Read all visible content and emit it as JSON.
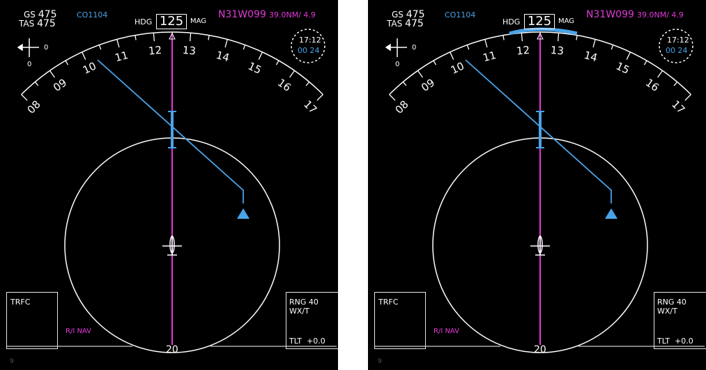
{
  "panels": [
    {
      "id": "left",
      "gs_label": "GS",
      "gs_value": "475",
      "tas_label": "TAS",
      "tas_value": "475",
      "flight_id": "CO1104",
      "hdg_label": "HDG",
      "hdg_value": "125",
      "mag_label": "MAG",
      "waypoint": "N31W099",
      "distance": "39.0NM/ 4.9",
      "wind_speed": "0",
      "wind_dir": "0",
      "clock_time": "17:12",
      "clock_eta": "00 24",
      "compass_ticks": [
        "08",
        "09",
        "10",
        "11",
        "12",
        "13",
        "14",
        "15",
        "16",
        "17"
      ],
      "range_ring_label": "20",
      "left_box_title": "TRFC",
      "nav_mode": "R/I NAV",
      "range_label": "RNG 40",
      "wx_label": "WX/T",
      "tilt_label": "TLT",
      "tilt_value": "+0.0",
      "page_num": "9",
      "heading_bug": false
    },
    {
      "id": "right",
      "gs_label": "GS",
      "gs_value": "475",
      "tas_label": "TAS",
      "tas_value": "475",
      "flight_id": "CO1104",
      "hdg_label": "HDG",
      "hdg_value": "125",
      "mag_label": "MAG",
      "waypoint": "N31W099",
      "distance": "39.0NM/ 4.9",
      "wind_speed": "0",
      "wind_dir": "0",
      "clock_time": "17:12",
      "clock_eta": "00 24",
      "compass_ticks": [
        "08",
        "09",
        "10",
        "11",
        "12",
        "13",
        "14",
        "15",
        "16",
        "17"
      ],
      "range_ring_label": "20",
      "left_box_title": "TRFC",
      "nav_mode": "R/I NAV",
      "range_label": "RNG 40",
      "wx_label": "WX/T",
      "tilt_label": "TLT",
      "tilt_value": "+0.0",
      "page_num": "9",
      "heading_bug": true
    }
  ],
  "colors": {
    "cyan": "#4aa3e8",
    "magenta": "#e23ad8",
    "white": "#ffffff",
    "background": "#000000"
  }
}
